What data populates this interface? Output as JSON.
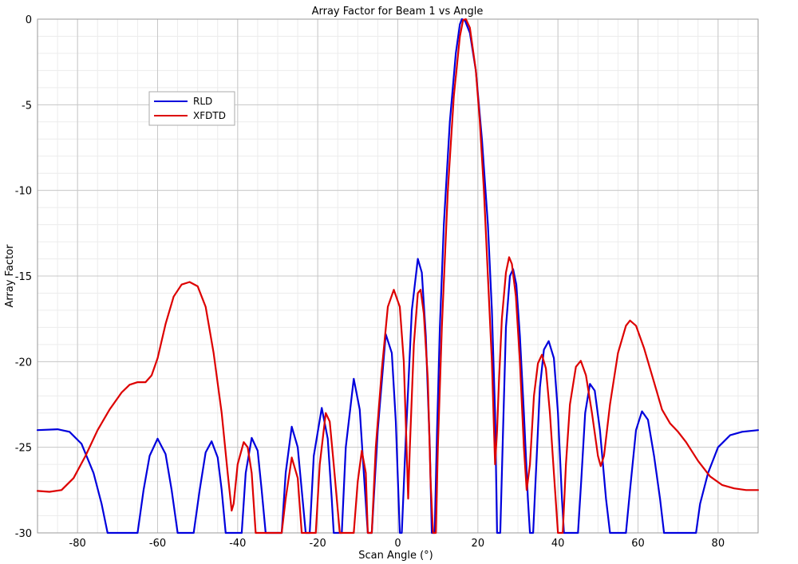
{
  "chart_data": {
    "type": "line",
    "title": "Array Factor for Beam 1 vs Angle",
    "xlabel": "Scan Angle (°)",
    "ylabel": "Array Factor",
    "xlim": [
      -90,
      90
    ],
    "ylim": [
      -30,
      0
    ],
    "xticks": [
      -80,
      -60,
      -40,
      -20,
      0,
      20,
      40,
      60,
      80
    ],
    "yticks": [
      0,
      -5,
      -10,
      -15,
      -20,
      -25,
      -30
    ],
    "xtick_labels": [
      "-80",
      "-60",
      "-40",
      "-20",
      "0",
      "20",
      "40",
      "60",
      "80"
    ],
    "ytick_labels": [
      "0",
      "-5",
      "-10",
      "-15",
      "-20",
      "-25",
      "-30"
    ],
    "grid": true,
    "minor_grid": true,
    "legend_position": "upper-left",
    "series": [
      {
        "name": "RLD",
        "color": "#0000dd",
        "points": [
          [
            -90,
            -24.0
          ],
          [
            -85,
            -23.95
          ],
          [
            -82,
            -24.1
          ],
          [
            -79,
            -24.8
          ],
          [
            -76,
            -26.5
          ],
          [
            -74,
            -28.3
          ],
          [
            -72.5,
            -30
          ],
          [
            -65,
            -30
          ],
          [
            -63.5,
            -27.5
          ],
          [
            -62,
            -25.5
          ],
          [
            -60,
            -24.5
          ],
          [
            -58,
            -25.4
          ],
          [
            -56.5,
            -27.5
          ],
          [
            -55,
            -30
          ],
          [
            -51,
            -30
          ],
          [
            -49.5,
            -27.5
          ],
          [
            -48,
            -25.3
          ],
          [
            -46.5,
            -24.65
          ],
          [
            -45,
            -25.6
          ],
          [
            -44,
            -27.5
          ],
          [
            -43,
            -30
          ],
          [
            -39,
            -30
          ],
          [
            -38,
            -26.5
          ],
          [
            -36.5,
            -24.45
          ],
          [
            -35,
            -25.2
          ],
          [
            -34,
            -27.5
          ],
          [
            -33,
            -30
          ],
          [
            -29,
            -30
          ],
          [
            -28,
            -26.5
          ],
          [
            -26.5,
            -23.8
          ],
          [
            -25,
            -25
          ],
          [
            -24,
            -27.5
          ],
          [
            -23,
            -30
          ],
          [
            -22,
            -30
          ],
          [
            -21,
            -25.5
          ],
          [
            -19,
            -22.7
          ],
          [
            -17.5,
            -24.5
          ],
          [
            -16.5,
            -28
          ],
          [
            -16,
            -30
          ],
          [
            -14,
            -30
          ],
          [
            -13,
            -25
          ],
          [
            -11,
            -21
          ],
          [
            -9.5,
            -22.8
          ],
          [
            -8.5,
            -26.5
          ],
          [
            -7.5,
            -30
          ],
          [
            -6.5,
            -30
          ],
          [
            -5,
            -24
          ],
          [
            -3,
            -18.4
          ],
          [
            -1.5,
            -19.5
          ],
          [
            -0.5,
            -23.5
          ],
          [
            0.5,
            -30
          ],
          [
            1,
            -30
          ],
          [
            2,
            -24.5
          ],
          [
            3.5,
            -17
          ],
          [
            5,
            -14
          ],
          [
            6,
            -14.8
          ],
          [
            7,
            -18.5
          ],
          [
            8,
            -25
          ],
          [
            8.5,
            -30
          ],
          [
            9.2,
            -30
          ],
          [
            9.8,
            -24
          ],
          [
            10.5,
            -18
          ],
          [
            11.5,
            -12
          ],
          [
            13,
            -6
          ],
          [
            14.5,
            -2
          ],
          [
            15.5,
            -0.3
          ],
          [
            16,
            0
          ],
          [
            16.8,
            -0.1
          ],
          [
            18,
            -0.8
          ],
          [
            19.5,
            -3
          ],
          [
            21,
            -7
          ],
          [
            22.5,
            -12
          ],
          [
            23.5,
            -17
          ],
          [
            24.3,
            -23
          ],
          [
            24.8,
            -30
          ],
          [
            25.6,
            -30
          ],
          [
            26.3,
            -24
          ],
          [
            27,
            -18
          ],
          [
            28,
            -15
          ],
          [
            28.8,
            -14.6
          ],
          [
            29.6,
            -15.5
          ],
          [
            30.5,
            -18.5
          ],
          [
            31.5,
            -23
          ],
          [
            32.5,
            -28
          ],
          [
            33,
            -30
          ],
          [
            33.8,
            -30
          ],
          [
            34.6,
            -26
          ],
          [
            35.5,
            -21.5
          ],
          [
            36.5,
            -19.3
          ],
          [
            37.7,
            -18.8
          ],
          [
            39,
            -19.8
          ],
          [
            40,
            -23
          ],
          [
            41,
            -28
          ],
          [
            41.5,
            -30
          ],
          [
            45,
            -30
          ],
          [
            45.8,
            -27
          ],
          [
            46.8,
            -23
          ],
          [
            48,
            -21.3
          ],
          [
            49.2,
            -21.7
          ],
          [
            50.5,
            -24
          ],
          [
            52,
            -28
          ],
          [
            53,
            -30
          ],
          [
            57,
            -30
          ],
          [
            58,
            -27.5
          ],
          [
            59.5,
            -24
          ],
          [
            61,
            -22.9
          ],
          [
            62.5,
            -23.4
          ],
          [
            64,
            -25.5
          ],
          [
            65.5,
            -28
          ],
          [
            66.5,
            -30
          ],
          [
            74.5,
            -30
          ],
          [
            75.5,
            -28.3
          ],
          [
            77.5,
            -26.5
          ],
          [
            80,
            -25
          ],
          [
            83,
            -24.3
          ],
          [
            86,
            -24.1
          ],
          [
            90,
            -24.0
          ]
        ]
      },
      {
        "name": "XFDTD",
        "color": "#dd0000",
        "points": [
          [
            -90,
            -27.55
          ],
          [
            -87,
            -27.6
          ],
          [
            -84,
            -27.5
          ],
          [
            -81,
            -26.8
          ],
          [
            -78,
            -25.5
          ],
          [
            -75,
            -24
          ],
          [
            -72,
            -22.8
          ],
          [
            -69,
            -21.8
          ],
          [
            -67,
            -21.35
          ],
          [
            -65,
            -21.2
          ],
          [
            -63,
            -21.2
          ],
          [
            -61.5,
            -20.8
          ],
          [
            -60,
            -19.8
          ],
          [
            -58,
            -17.8
          ],
          [
            -56,
            -16.2
          ],
          [
            -54,
            -15.5
          ],
          [
            -52,
            -15.35
          ],
          [
            -50,
            -15.6
          ],
          [
            -48,
            -16.8
          ],
          [
            -46,
            -19.5
          ],
          [
            -44,
            -23
          ],
          [
            -42.5,
            -26.5
          ],
          [
            -41.5,
            -28.7
          ],
          [
            -41,
            -28.3
          ],
          [
            -40,
            -26
          ],
          [
            -38.5,
            -24.7
          ],
          [
            -37.5,
            -25
          ],
          [
            -36.5,
            -26.5
          ],
          [
            -35.5,
            -30
          ],
          [
            -30,
            -30
          ],
          [
            -29,
            -30
          ],
          [
            -28,
            -28
          ],
          [
            -26.5,
            -25.6
          ],
          [
            -25,
            -26.8
          ],
          [
            -24,
            -30
          ],
          [
            -20.5,
            -30
          ],
          [
            -19.5,
            -26
          ],
          [
            -18,
            -23
          ],
          [
            -17,
            -23.5
          ],
          [
            -16,
            -26
          ],
          [
            -14.5,
            -30
          ],
          [
            -11,
            -30
          ],
          [
            -10,
            -27
          ],
          [
            -9,
            -25.2
          ],
          [
            -8,
            -26.5
          ],
          [
            -7.5,
            -30
          ],
          [
            -6.5,
            -30
          ],
          [
            -5.5,
            -25
          ],
          [
            -4,
            -20.5
          ],
          [
            -2.5,
            -16.8
          ],
          [
            -1,
            -15.8
          ],
          [
            0.5,
            -16.8
          ],
          [
            1.5,
            -20
          ],
          [
            2.2,
            -25
          ],
          [
            2.6,
            -28
          ],
          [
            3,
            -25
          ],
          [
            4,
            -19
          ],
          [
            5,
            -16
          ],
          [
            5.7,
            -15.8
          ],
          [
            6.5,
            -17.2
          ],
          [
            7.5,
            -21
          ],
          [
            8.2,
            -27
          ],
          [
            8.8,
            -30
          ],
          [
            9.5,
            -30
          ],
          [
            10,
            -25
          ],
          [
            11,
            -18
          ],
          [
            12.5,
            -10
          ],
          [
            14,
            -4.5
          ],
          [
            15.5,
            -1
          ],
          [
            16.3,
            -0.05
          ],
          [
            17,
            0
          ],
          [
            18,
            -0.5
          ],
          [
            19.5,
            -3
          ],
          [
            20.5,
            -6
          ],
          [
            21.5,
            -10
          ],
          [
            22.5,
            -15
          ],
          [
            23.5,
            -20
          ],
          [
            24.3,
            -26
          ],
          [
            24.8,
            -24
          ],
          [
            25.3,
            -21
          ],
          [
            26,
            -17.5
          ],
          [
            27,
            -14.8
          ],
          [
            27.8,
            -13.9
          ],
          [
            28.5,
            -14.3
          ],
          [
            29.5,
            -16.2
          ],
          [
            30.5,
            -20
          ],
          [
            31.5,
            -25
          ],
          [
            32.2,
            -27.5
          ],
          [
            33,
            -26
          ],
          [
            34,
            -22
          ],
          [
            35,
            -20.1
          ],
          [
            36,
            -19.6
          ],
          [
            37,
            -20.4
          ],
          [
            38,
            -23
          ],
          [
            39,
            -26.5
          ],
          [
            40,
            -30
          ],
          [
            41.2,
            -30
          ],
          [
            42,
            -26
          ],
          [
            43,
            -22.5
          ],
          [
            44.5,
            -20.3
          ],
          [
            45.7,
            -19.95
          ],
          [
            47,
            -20.8
          ],
          [
            48.5,
            -23
          ],
          [
            50,
            -25.5
          ],
          [
            50.7,
            -26.1
          ],
          [
            51.5,
            -25.5
          ],
          [
            53,
            -22.5
          ],
          [
            55,
            -19.5
          ],
          [
            57,
            -17.9
          ],
          [
            58,
            -17.6
          ],
          [
            59.5,
            -17.9
          ],
          [
            61.5,
            -19.2
          ],
          [
            64,
            -21.2
          ],
          [
            66,
            -22.8
          ],
          [
            68,
            -23.6
          ],
          [
            70,
            -24.1
          ],
          [
            72,
            -24.7
          ],
          [
            75,
            -25.8
          ],
          [
            78,
            -26.7
          ],
          [
            81,
            -27.2
          ],
          [
            84,
            -27.4
          ],
          [
            87,
            -27.5
          ],
          [
            90,
            -27.5
          ]
        ]
      }
    ]
  }
}
